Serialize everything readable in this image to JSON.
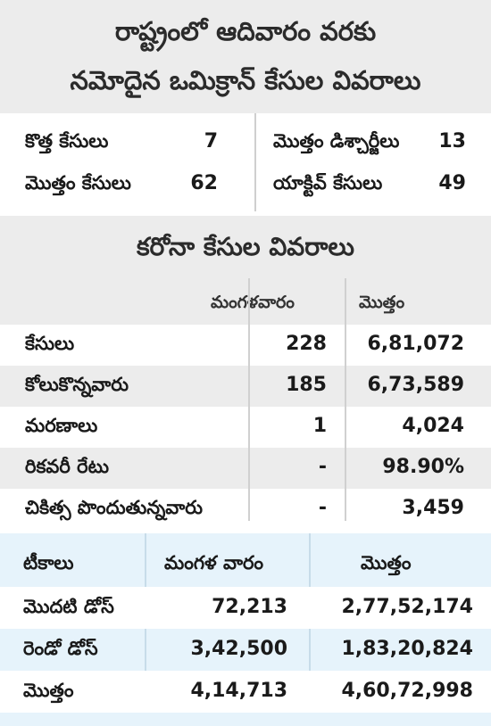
{
  "header": {
    "line1": "రాష్ట్రంలో ఆదివారం వరకు",
    "line2": "నమోదైన ఒమిక్రాన్ కేసుల వివరాలు"
  },
  "omicron": {
    "new_cases_label": "కొత్త కేసులు",
    "new_cases_value": "7",
    "total_cases_label": "మొత్తం కేసులు",
    "total_cases_value": "62",
    "total_discharged_label": "మొత్తం డిశ్చార్జీలు",
    "total_discharged_value": "13",
    "active_cases_label": "యాక్టివ్ కేసులు",
    "active_cases_value": "49"
  },
  "corona": {
    "title": "కరోనా కేసుల వివరాలు",
    "col_tuesday": "మంగళవారం",
    "col_total": "మొత్తం",
    "rows": [
      {
        "label": "కేసులు",
        "tuesday": "228",
        "total": "6,81,072"
      },
      {
        "label": "కోలుకొన్నవారు",
        "tuesday": "185",
        "total": "6,73,589"
      },
      {
        "label": "మరణాలు",
        "tuesday": "1",
        "total": "4,024"
      },
      {
        "label": "రికవరీ రేటు",
        "tuesday": "-",
        "total": "98.90%"
      },
      {
        "label": "చికిత్స పొందుతున్నవారు",
        "tuesday": "-",
        "total": "3,459"
      }
    ]
  },
  "vaccines": {
    "col_label": "టీకాలు",
    "col_tuesday": "మంగళ వారం",
    "col_total": "మొత్తం",
    "rows": [
      {
        "label": "మొదటి డోస్",
        "tuesday": "72,213",
        "total": "2,77,52,174"
      },
      {
        "label": "రెండో డోస్",
        "tuesday": "3,42,500",
        "total": "1,83,20,824"
      },
      {
        "label": "మొత్తం",
        "tuesday": "4,14,713",
        "total": "4,60,72,998"
      }
    ]
  }
}
